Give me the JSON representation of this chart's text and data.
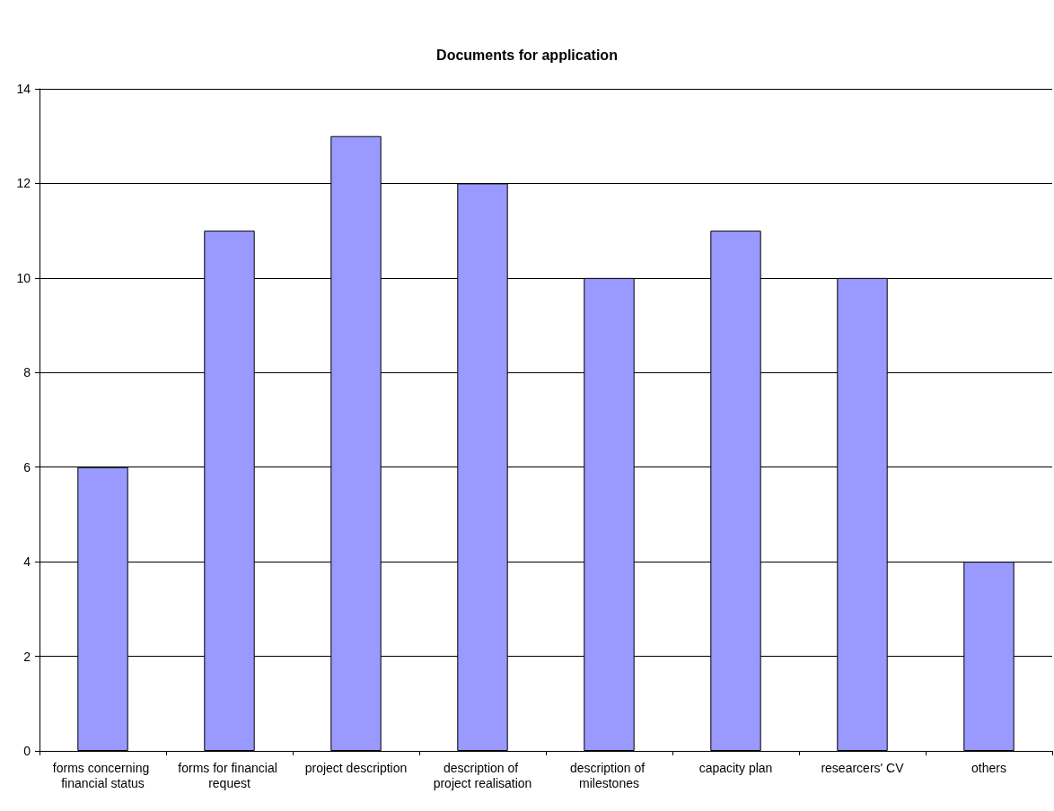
{
  "chart_data": {
    "type": "bar",
    "title": "Documents for application",
    "categories": [
      "forms concerning financial status",
      "forms for financial request",
      "project description",
      "description of project realisation",
      "description of milestones",
      "capacity plan",
      "researcers' CV",
      "others"
    ],
    "values": [
      6,
      11,
      13,
      12,
      10,
      11,
      10,
      4
    ],
    "color": "#9999ff",
    "ylim": [
      0,
      14
    ],
    "yticks": [
      0,
      2,
      4,
      6,
      8,
      10,
      12,
      14
    ],
    "grid": "y"
  }
}
